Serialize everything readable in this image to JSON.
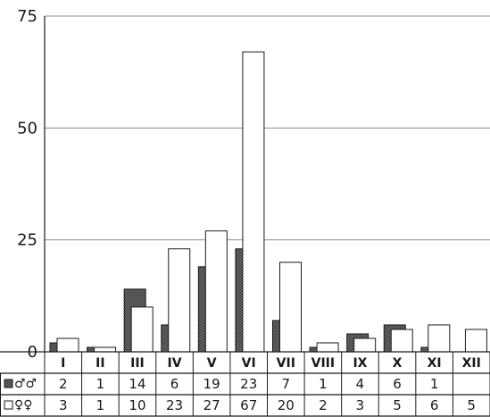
{
  "chart_data": {
    "type": "bar",
    "categories": [
      "I",
      "II",
      "III",
      "IV",
      "V",
      "VI",
      "VII",
      "VIII",
      "IX",
      "X",
      "XI",
      "XII"
    ],
    "series": [
      {
        "name": "♂♂",
        "color": "#666666",
        "pattern": "hatched",
        "values": [
          2,
          1,
          14,
          6,
          19,
          23,
          7,
          1,
          4,
          6,
          1,
          null
        ]
      },
      {
        "name": "♀♀",
        "color": "#ffffff",
        "pattern": "open",
        "values": [
          3,
          1,
          10,
          23,
          27,
          67,
          20,
          2,
          3,
          5,
          6,
          5
        ]
      }
    ],
    "ylim": [
      0,
      75
    ],
    "yticks": [
      "0",
      "25",
      "50",
      "75"
    ],
    "grid": true,
    "table": {
      "legend_rows": [
        "♂♂",
        "♀♀"
      ],
      "rows": [
        [
          "2",
          "1",
          "14",
          "6",
          "19",
          "23",
          "7",
          "1",
          "4",
          "6",
          "1",
          ""
        ],
        [
          "3",
          "1",
          "10",
          "23",
          "27",
          "67",
          "20",
          "2",
          "3",
          "5",
          "6",
          "5"
        ]
      ]
    }
  }
}
